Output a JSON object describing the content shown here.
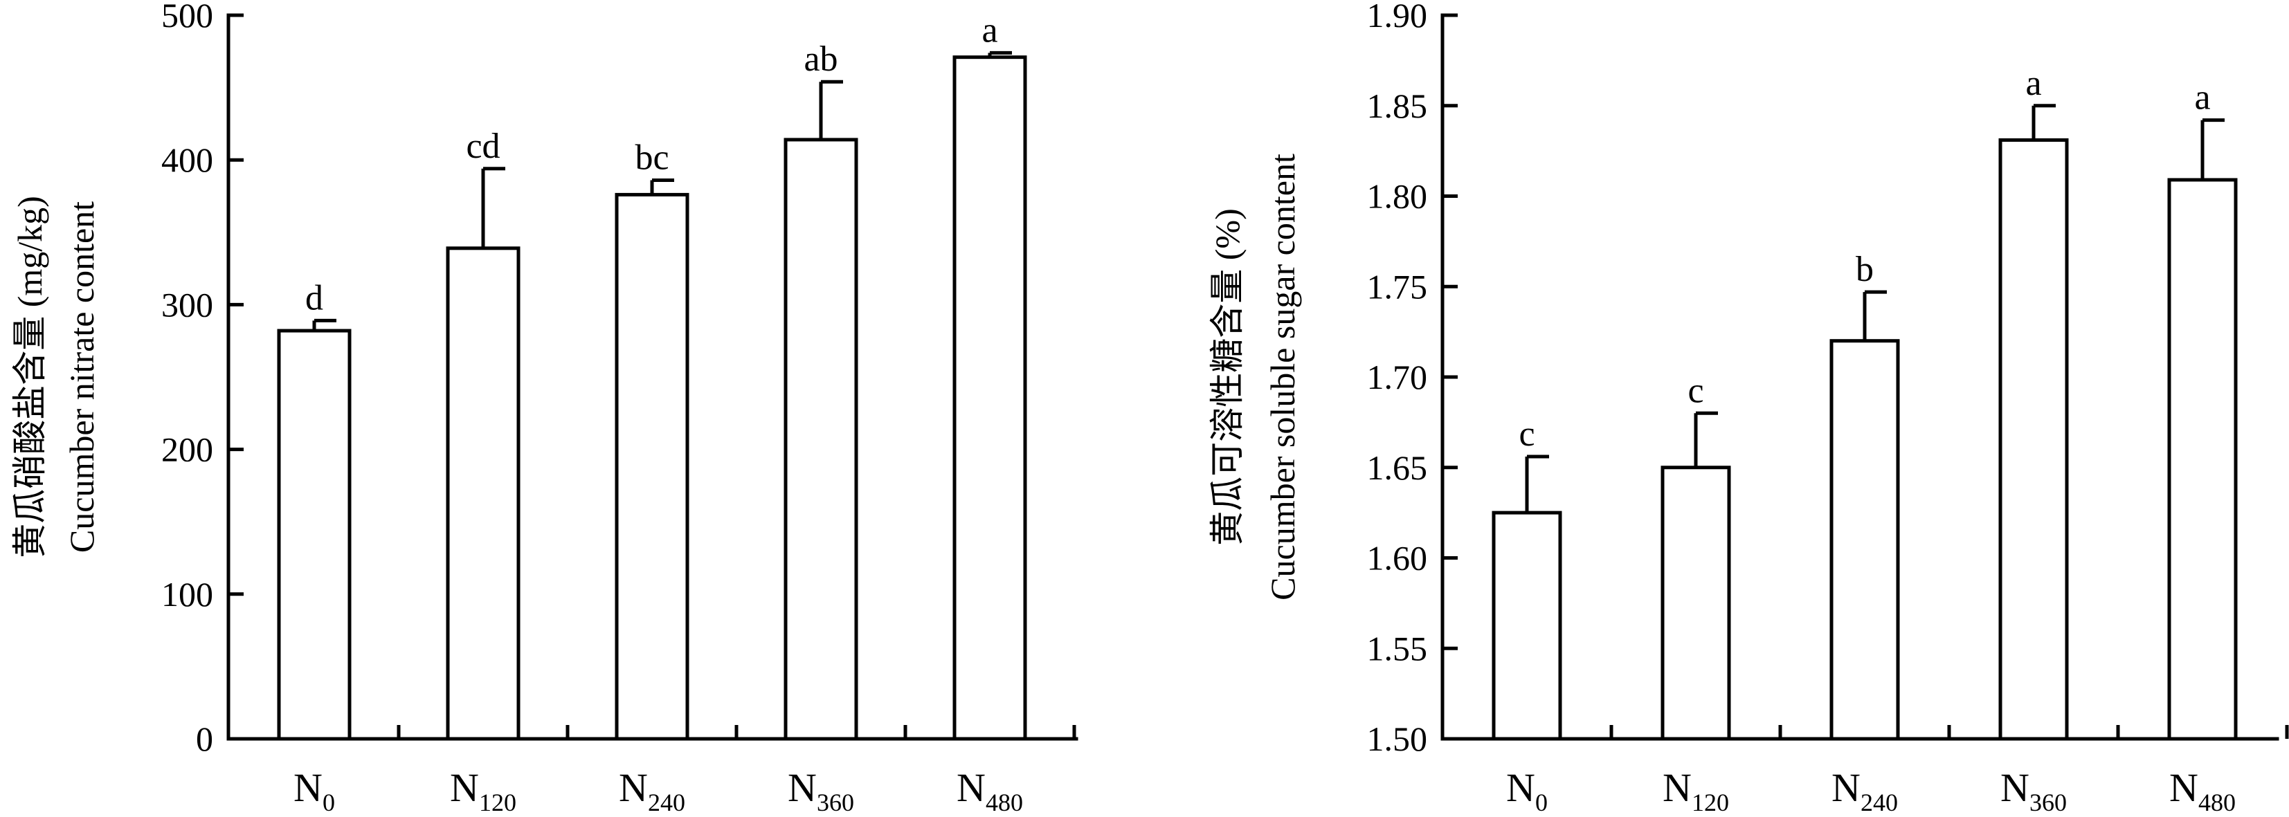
{
  "chart_data": [
    {
      "type": "bar",
      "ylabel_cn": "黄瓜硝酸盐含量 (mg/kg)",
      "ylabel_en": "Cucumber nitrate content",
      "ylim": [
        0,
        500
      ],
      "yticks": [
        "0",
        "100",
        "200",
        "300",
        "400",
        "500"
      ],
      "ytick_values": [
        0,
        100,
        200,
        300,
        400,
        500
      ],
      "categories": [
        {
          "base": "N",
          "sub": "0"
        },
        {
          "base": "N",
          "sub": "120"
        },
        {
          "base": "N",
          "sub": "240"
        },
        {
          "base": "N",
          "sub": "360"
        },
        {
          "base": "N",
          "sub": "480"
        }
      ],
      "values": [
        282,
        339,
        376,
        414,
        471
      ],
      "errors": [
        7,
        55,
        10,
        40,
        3
      ],
      "significance": [
        "d",
        "cd",
        "bc",
        "ab",
        "a"
      ]
    },
    {
      "type": "bar",
      "ylabel_cn": "黄瓜可溶性糖含量 (%)",
      "ylabel_en": "Cucumber soluble sugar content",
      "ylim": [
        1.5,
        1.9
      ],
      "yticks": [
        "1.50",
        "1.55",
        "1.60",
        "1.65",
        "1.70",
        "1.75",
        "1.80",
        "1.85",
        "1.90"
      ],
      "ytick_values": [
        1.5,
        1.55,
        1.6,
        1.65,
        1.7,
        1.75,
        1.8,
        1.85,
        1.9
      ],
      "categories": [
        {
          "base": "N",
          "sub": "0"
        },
        {
          "base": "N",
          "sub": "120"
        },
        {
          "base": "N",
          "sub": "240"
        },
        {
          "base": "N",
          "sub": "360"
        },
        {
          "base": "N",
          "sub": "480"
        }
      ],
      "values": [
        1.625,
        1.65,
        1.72,
        1.831,
        1.809
      ],
      "errors": [
        0.031,
        0.03,
        0.027,
        0.019,
        0.033
      ],
      "significance": [
        "c",
        "c",
        "b",
        "a",
        "a"
      ]
    }
  ]
}
